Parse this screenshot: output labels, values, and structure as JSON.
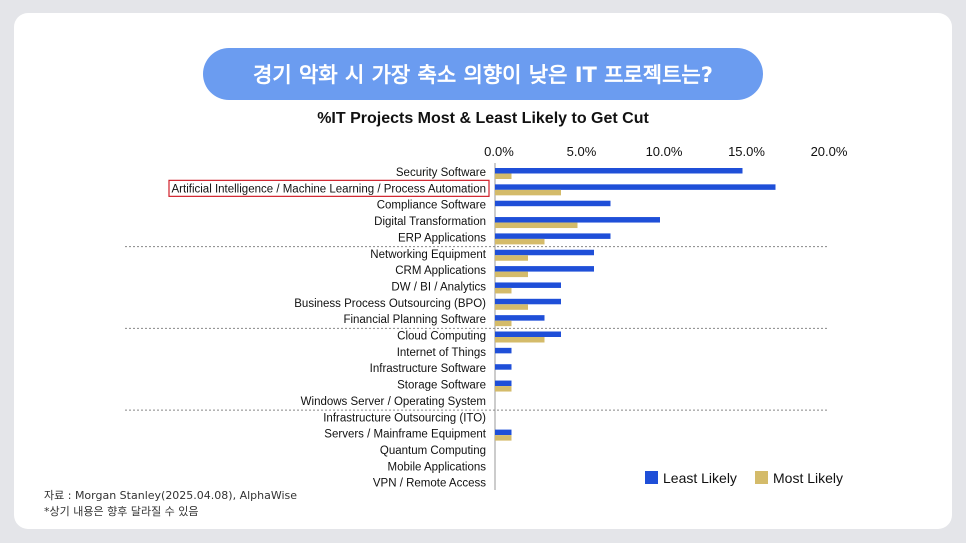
{
  "header": {
    "title": "경기 악화 시 가장 축소 의향이 낮은 IT 프로젝트는?"
  },
  "footer": {
    "source": "자료 : Morgan Stanley(2025.04.08), AlphaWise",
    "note": "*상기 내용은 향후 달라질 수 있음"
  },
  "chart_data": {
    "type": "bar",
    "orientation": "horizontal",
    "title": "%IT Projects Most & Least Likely to Get Cut",
    "categories": [
      "Security Software",
      "Artificial Intelligence / Machine Learning / Process Automation",
      "Compliance Software",
      "Digital Transformation",
      "ERP Applications",
      "Networking Equipment",
      "CRM Applications",
      "DW / BI / Analytics",
      "Business Process Outsourcing (BPO)",
      "Financial Planning Software",
      "Cloud Computing",
      "Internet of Things",
      "Infrastructure Software",
      "Storage Software",
      "Windows Server / Operating System",
      "Infrastructure Outsourcing (ITO)",
      "Servers / Mainframe Equipment",
      "Quantum Computing",
      "Mobile Applications",
      "VPN / Remote Access"
    ],
    "highlighted": "Artificial Intelligence / Machine Learning / Process Automation",
    "series": [
      {
        "name": "Least Likely",
        "color": "#1f4fd8",
        "values": [
          15,
          17,
          7,
          10,
          7,
          6,
          6,
          4,
          4,
          3,
          4,
          1,
          1,
          1,
          0,
          0,
          1,
          0,
          0,
          0
        ]
      },
      {
        "name": "Most Likely",
        "color": "#d4bb6a",
        "values": [
          1,
          4,
          0,
          5,
          3,
          2,
          2,
          1,
          2,
          1,
          3,
          0,
          0,
          1,
          0,
          0,
          1,
          0,
          0,
          0
        ]
      }
    ],
    "xticks": [
      "0.0%",
      "5.0%",
      "10.0%",
      "15.0%",
      "20.0%"
    ],
    "xlim": [
      0,
      20
    ],
    "legend": "bottom-right",
    "group_separators_after": [
      4,
      9,
      14
    ]
  }
}
